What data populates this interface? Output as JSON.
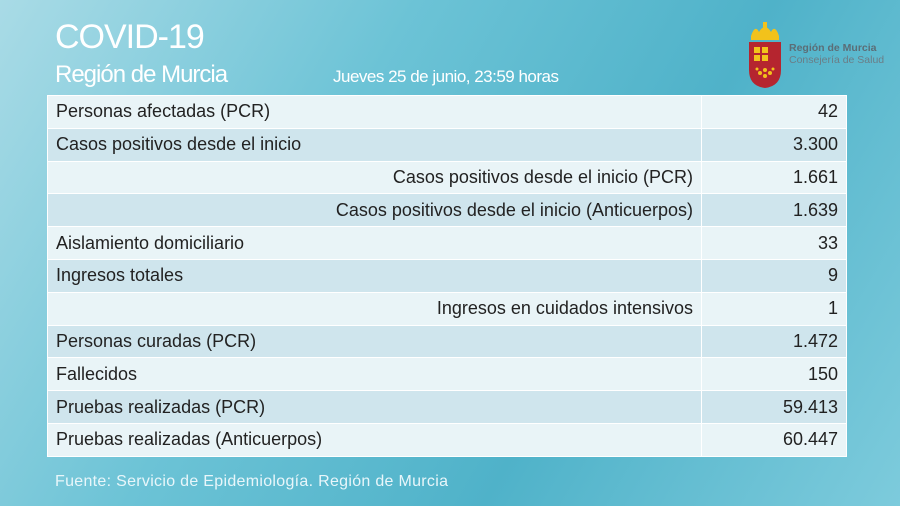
{
  "header": {
    "title": "COVID-19",
    "subtitle": "Región de Murcia",
    "date": "Jueves 25 de junio, 23:59 horas"
  },
  "logo": {
    "line1": "Región de Murcia",
    "line2": "Consejería de Salud",
    "colors": {
      "shield": "#b5252f",
      "crown": "#f2c21b"
    }
  },
  "rows": [
    {
      "label": "Personas afectadas (PCR)",
      "value": "42",
      "indent": false
    },
    {
      "label": "Casos positivos desde el inicio",
      "value": "3.300",
      "indent": false
    },
    {
      "label": "Casos positivos desde el inicio (PCR)",
      "value": "1.661",
      "indent": true
    },
    {
      "label": "Casos positivos desde el inicio (Anticuerpos)",
      "value": "1.639",
      "indent": true
    },
    {
      "label": "Aislamiento domiciliario",
      "value": "33",
      "indent": false
    },
    {
      "label": "Ingresos totales",
      "value": "9",
      "indent": false
    },
    {
      "label": "Ingresos en cuidados intensivos",
      "value": "1",
      "indent": true
    },
    {
      "label": "Personas curadas (PCR)",
      "value": "1.472",
      "indent": false
    },
    {
      "label": "Fallecidos",
      "value": "150",
      "indent": false
    },
    {
      "label": "Pruebas realizadas (PCR)",
      "value": "59.413",
      "indent": false
    },
    {
      "label": "Pruebas realizadas (Anticuerpos)",
      "value": "60.447",
      "indent": false
    }
  ],
  "footer": {
    "source": "Fuente: Servicio de Epidemiología.  Región de Murcia"
  }
}
